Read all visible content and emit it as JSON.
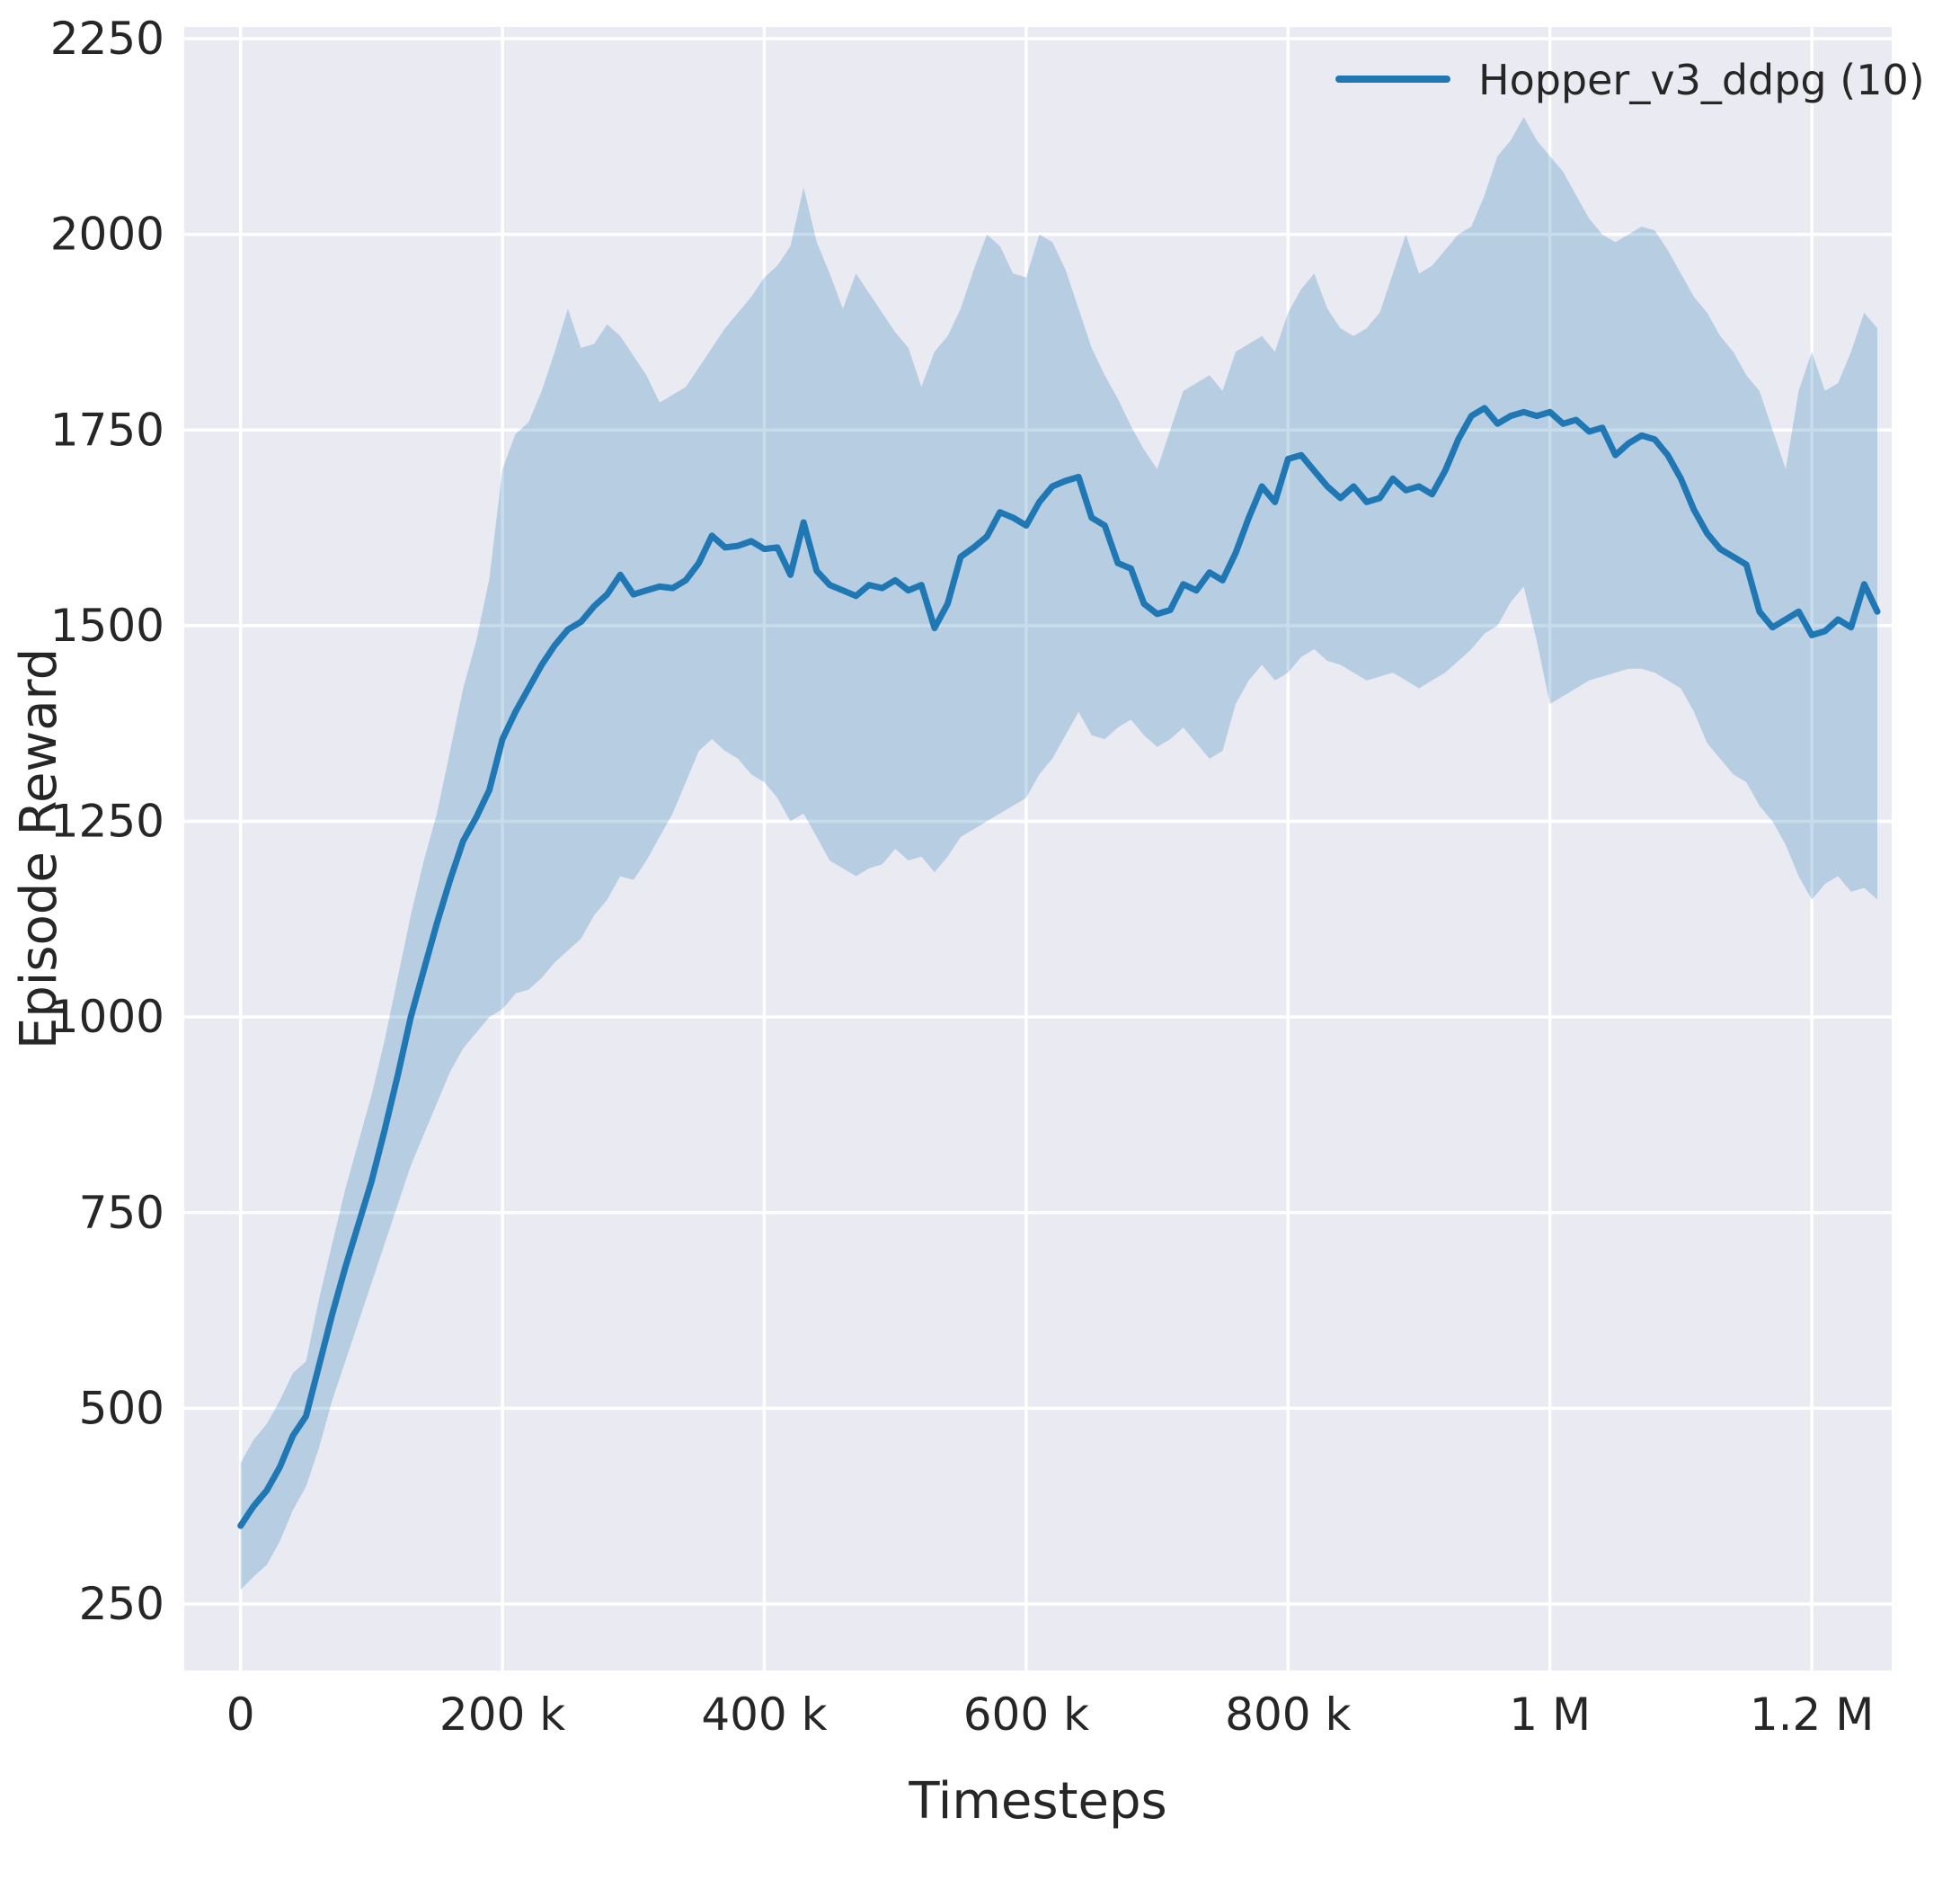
{
  "chart_data": {
    "type": "line",
    "title": "",
    "xlabel": "Timesteps",
    "ylabel": "Episode Reward",
    "grid": true,
    "legend_position": "upper right",
    "background_color": "#eaeaf2",
    "grid_color": "#ffffff",
    "text_color": "#262626",
    "xlim": [
      -43000,
      1261000
    ],
    "ylim": [
      165,
      2265
    ],
    "x_ticks": {
      "values": [
        0,
        200000,
        400000,
        600000,
        800000,
        1000000,
        1200000
      ],
      "labels": [
        "0",
        "200 k",
        "400 k",
        "600 k",
        "800 k",
        "1 M",
        "1.2 M"
      ]
    },
    "y_ticks": {
      "values": [
        250,
        500,
        750,
        1000,
        1250,
        1500,
        1750,
        2000,
        2250
      ],
      "labels": [
        "250",
        "500",
        "750",
        "1000",
        "1250",
        "1500",
        "1750",
        "2000",
        "2250"
      ]
    },
    "series": [
      {
        "name": "Hopper_v3_ddpg (10)",
        "color": "#1f77b4",
        "band_opacity": 0.25,
        "line_width": 7,
        "x": {
          "start": 0,
          "step": 10000,
          "count": 126
        },
        "mean": [
          350,
          375,
          395,
          425,
          465,
          490,
          555,
          620,
          680,
          735,
          790,
          855,
          925,
          1000,
          1060,
          1120,
          1175,
          1225,
          1255,
          1290,
          1355,
          1390,
          1420,
          1450,
          1475,
          1495,
          1505,
          1525,
          1540,
          1565,
          1540,
          1545,
          1550,
          1548,
          1558,
          1580,
          1615,
          1600,
          1602,
          1608,
          1598,
          1600,
          1565,
          1632,
          1570,
          1552,
          1545,
          1538,
          1552,
          1548,
          1558,
          1545,
          1552,
          1497,
          1528,
          1588,
          1600,
          1614,
          1645,
          1638,
          1628,
          1658,
          1678,
          1685,
          1690,
          1638,
          1628,
          1580,
          1573,
          1528,
          1515,
          1520,
          1553,
          1545,
          1568,
          1558,
          1593,
          1638,
          1678,
          1658,
          1713,
          1718,
          1698,
          1678,
          1663,
          1678,
          1658,
          1663,
          1688,
          1673,
          1678,
          1668,
          1698,
          1738,
          1768,
          1778,
          1758,
          1768,
          1773,
          1768,
          1773,
          1758,
          1763,
          1748,
          1753,
          1718,
          1733,
          1743,
          1738,
          1718,
          1688,
          1648,
          1618,
          1598,
          1588,
          1578,
          1518,
          1498,
          1508,
          1518,
          1488,
          1493,
          1508,
          1498,
          1553,
          1518
        ],
        "lower": [
          268,
          285,
          300,
          330,
          370,
          400,
          450,
          510,
          560,
          610,
          660,
          710,
          760,
          810,
          850,
          890,
          930,
          960,
          980,
          1000,
          1010,
          1030,
          1035,
          1050,
          1070,
          1085,
          1100,
          1130,
          1150,
          1180,
          1175,
          1200,
          1230,
          1260,
          1300,
          1340,
          1355,
          1340,
          1330,
          1310,
          1300,
          1280,
          1250,
          1260,
          1230,
          1200,
          1190,
          1180,
          1190,
          1195,
          1215,
          1200,
          1205,
          1185,
          1205,
          1230,
          1240,
          1250,
          1260,
          1270,
          1280,
          1310,
          1330,
          1360,
          1390,
          1360,
          1355,
          1370,
          1380,
          1360,
          1345,
          1355,
          1370,
          1350,
          1330,
          1340,
          1400,
          1430,
          1450,
          1430,
          1440,
          1460,
          1470,
          1455,
          1450,
          1440,
          1430,
          1435,
          1440,
          1430,
          1420,
          1430,
          1440,
          1455,
          1470,
          1490,
          1500,
          1530,
          1550,
          1480,
          1400,
          1410,
          1420,
          1430,
          1435,
          1440,
          1445,
          1445,
          1440,
          1430,
          1420,
          1390,
          1350,
          1330,
          1310,
          1300,
          1270,
          1250,
          1220,
          1180,
          1150,
          1170,
          1180,
          1160,
          1165,
          1150
        ],
        "upper": [
          430,
          460,
          480,
          510,
          545,
          560,
          640,
          710,
          780,
          840,
          900,
          970,
          1050,
          1130,
          1200,
          1260,
          1340,
          1420,
          1480,
          1560,
          1700,
          1745,
          1760,
          1800,
          1850,
          1905,
          1855,
          1860,
          1885,
          1870,
          1845,
          1820,
          1785,
          1795,
          1805,
          1830,
          1855,
          1880,
          1900,
          1920,
          1945,
          1960,
          1985,
          2060,
          1990,
          1950,
          1905,
          1950,
          1925,
          1900,
          1875,
          1855,
          1805,
          1850,
          1870,
          1905,
          1955,
          2000,
          1985,
          1950,
          1945,
          2000,
          1990,
          1955,
          1905,
          1855,
          1820,
          1790,
          1755,
          1725,
          1700,
          1750,
          1800,
          1810,
          1820,
          1800,
          1850,
          1860,
          1870,
          1850,
          1900,
          1930,
          1950,
          1905,
          1880,
          1870,
          1880,
          1900,
          1950,
          2000,
          1950,
          1960,
          1980,
          2000,
          2010,
          2050,
          2100,
          2120,
          2150,
          2120,
          2100,
          2080,
          2050,
          2020,
          2000,
          1990,
          2000,
          2010,
          2005,
          1980,
          1950,
          1920,
          1900,
          1870,
          1850,
          1820,
          1800,
          1750,
          1700,
          1800,
          1850,
          1800,
          1810,
          1850,
          1900,
          1880
        ]
      }
    ]
  }
}
